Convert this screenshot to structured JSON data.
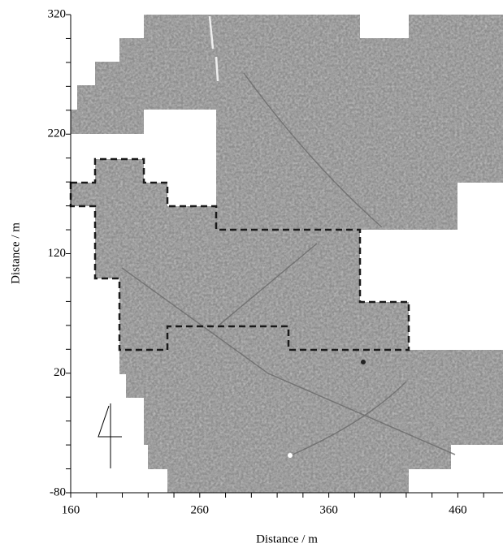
{
  "chart_data": {
    "type": "image",
    "xlabel": "Distance / m",
    "ylabel": "Distance / m",
    "xlim": [
      160,
      495
    ],
    "ylim": [
      -80,
      320
    ],
    "xticks": [
      160,
      260,
      360,
      460
    ],
    "yticks": [
      -80,
      20,
      120,
      220,
      320
    ],
    "xminorticks": [
      180,
      200,
      220,
      240,
      280,
      300,
      320,
      340,
      380,
      400,
      420,
      440,
      480
    ],
    "yminorticks": [
      -60,
      -40,
      -20,
      0,
      40,
      60,
      80,
      100,
      140,
      160,
      180,
      200,
      240,
      260,
      280,
      300
    ]
  }
}
